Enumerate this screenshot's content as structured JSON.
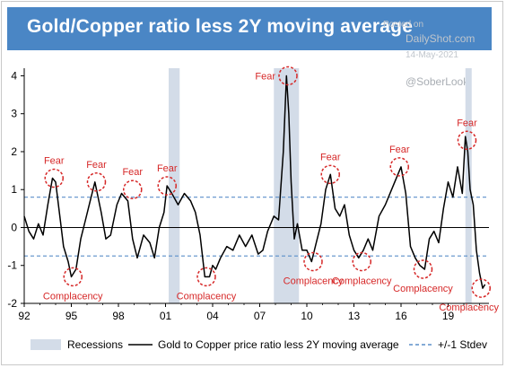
{
  "header": {
    "title": "Gold/Copper ratio less 2Y moving average",
    "watermark_posted": "Posted on",
    "watermark_site": "DailyShot.com",
    "watermark_date": "14-May-2021",
    "watermark_handle": "@SoberLook"
  },
  "colors": {
    "title_bar": "#4a86c5",
    "recession": "#d3dce8",
    "line": "#000000",
    "stdev": "#5b8fc9",
    "annotation": "#d62828"
  },
  "chart_data": {
    "type": "line",
    "title": "Gold/Copper ratio less 2Y moving average",
    "xlabel": "",
    "ylabel": "",
    "xlim": [
      1992.0,
      2021.6
    ],
    "ylim": [
      -2,
      4.2
    ],
    "x_tick_labels": [
      "92",
      "95",
      "98",
      "01",
      "04",
      "07",
      "10",
      "13",
      "16",
      "19"
    ],
    "x_ticks": [
      1992,
      1995,
      1998,
      2001,
      2004,
      2007,
      2010,
      2013,
      2016,
      2019
    ],
    "y_ticks": [
      -2,
      -1,
      0,
      1,
      2,
      3,
      4
    ],
    "grid": false,
    "legend_position": "bottom",
    "legend": [
      "Recessions",
      "Gold to Copper price ratio less 2Y moving average",
      "+/-1 Stdev"
    ],
    "stdev_band": [
      -0.75,
      0.8
    ],
    "recessions": [
      [
        2001.2,
        2001.9
      ],
      [
        2007.9,
        2009.5
      ],
      [
        2020.1,
        2020.5
      ]
    ],
    "series": [
      {
        "name": "Gold to Copper price ratio less 2Y moving average",
        "x": [
          1992.0,
          1992.3,
          1992.6,
          1992.9,
          1993.2,
          1993.5,
          1993.8,
          1994.0,
          1994.3,
          1994.5,
          1994.8,
          1995.0,
          1995.3,
          1995.6,
          1995.9,
          1996.2,
          1996.5,
          1996.9,
          1997.2,
          1997.5,
          1997.7,
          1997.9,
          1998.2,
          1998.6,
          1998.9,
          1999.2,
          1999.6,
          2000.0,
          2000.3,
          2000.6,
          2000.9,
          2001.1,
          2001.4,
          2001.8,
          2002.2,
          2002.6,
          2002.9,
          2003.2,
          2003.5,
          2003.8,
          2004.0,
          2004.2,
          2004.5,
          2004.9,
          2005.3,
          2005.7,
          2006.1,
          2006.5,
          2006.9,
          2007.2,
          2007.5,
          2007.9,
          2008.2,
          2008.5,
          2008.7,
          2008.85,
          2009.0,
          2009.2,
          2009.4,
          2009.7,
          2010.0,
          2010.3,
          2010.6,
          2010.9,
          2011.2,
          2011.5,
          2011.8,
          2012.1,
          2012.4,
          2012.7,
          2013.0,
          2013.3,
          2013.6,
          2013.9,
          2014.2,
          2014.6,
          2015.0,
          2015.4,
          2015.8,
          2016.0,
          2016.3,
          2016.6,
          2016.9,
          2017.2,
          2017.5,
          2017.8,
          2018.1,
          2018.4,
          2018.7,
          2019.0,
          2019.3,
          2019.6,
          2019.9,
          2020.1,
          2020.25,
          2020.4,
          2020.6,
          2020.8,
          2021.0,
          2021.2,
          2021.35
        ],
        "values": [
          0.3,
          -0.1,
          -0.3,
          0.1,
          -0.2,
          0.6,
          1.3,
          1.2,
          0.2,
          -0.5,
          -0.9,
          -1.3,
          -1.1,
          -0.3,
          0.2,
          0.7,
          1.2,
          0.4,
          -0.3,
          -0.2,
          0.2,
          0.6,
          0.9,
          0.7,
          -0.3,
          -0.8,
          -0.2,
          -0.4,
          -0.8,
          0.0,
          0.4,
          1.1,
          0.9,
          0.6,
          0.9,
          0.7,
          0.4,
          -0.2,
          -1.3,
          -1.3,
          -1.0,
          -1.1,
          -0.8,
          -0.5,
          -0.6,
          -0.2,
          -0.5,
          -0.2,
          -0.7,
          -0.6,
          -0.1,
          0.3,
          0.2,
          2.0,
          4.0,
          3.0,
          1.2,
          -0.3,
          0.1,
          -0.6,
          -0.6,
          -0.9,
          -0.4,
          0.1,
          1.0,
          1.4,
          0.5,
          0.3,
          0.6,
          -0.2,
          -0.6,
          -0.8,
          -0.6,
          -0.3,
          -0.6,
          0.3,
          0.6,
          1.0,
          1.4,
          1.6,
          0.9,
          -0.5,
          -0.8,
          -1.0,
          -1.1,
          -0.3,
          -0.1,
          -0.4,
          0.5,
          1.2,
          0.8,
          1.6,
          0.9,
          2.4,
          2.0,
          1.0,
          0.6,
          -0.6,
          -1.2,
          -1.6,
          -1.5
        ]
      }
    ],
    "annotations": [
      {
        "label": "Fear",
        "x": 1993.9,
        "y": 1.3,
        "position": "above"
      },
      {
        "label": "Fear",
        "x": 1996.6,
        "y": 1.2,
        "position": "above"
      },
      {
        "label": "Fear",
        "x": 1998.9,
        "y": 1.0,
        "position": "above"
      },
      {
        "label": "Fear",
        "x": 2001.1,
        "y": 1.1,
        "position": "above"
      },
      {
        "label": "Fear",
        "x": 2008.8,
        "y": 4.0,
        "position": "left"
      },
      {
        "label": "Fear",
        "x": 2011.5,
        "y": 1.4,
        "position": "above"
      },
      {
        "label": "Fear",
        "x": 2015.9,
        "y": 1.6,
        "position": "above"
      },
      {
        "label": "Fear",
        "x": 2020.2,
        "y": 2.3,
        "position": "above"
      },
      {
        "label": "Complacency",
        "x": 1995.1,
        "y": -1.3,
        "position": "below"
      },
      {
        "label": "Complacency",
        "x": 2003.6,
        "y": -1.3,
        "position": "below"
      },
      {
        "label": "Complacency",
        "x": 2010.4,
        "y": -0.9,
        "position": "below"
      },
      {
        "label": "Complacency",
        "x": 2013.5,
        "y": -0.9,
        "position": "below"
      },
      {
        "label": "Complacency",
        "x": 2017.4,
        "y": -1.1,
        "position": "below"
      },
      {
        "label": "Complacency",
        "x": 2021.1,
        "y": -1.6,
        "position": "below"
      }
    ]
  }
}
